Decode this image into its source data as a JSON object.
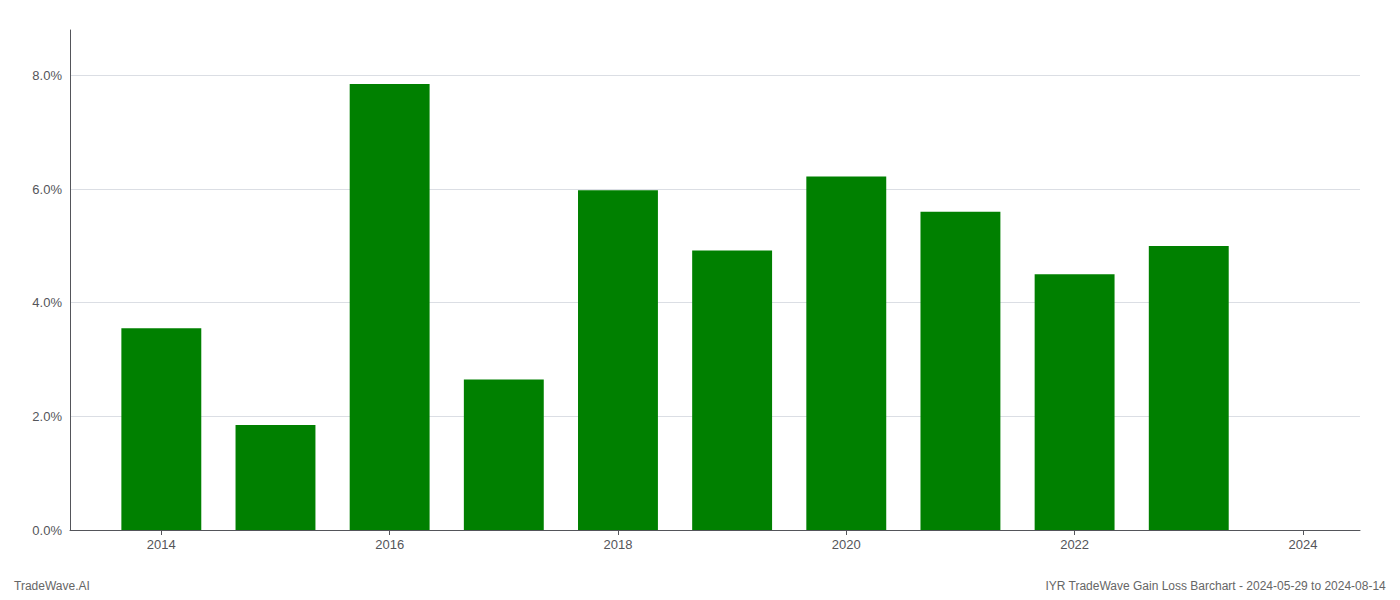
{
  "chart_data": {
    "type": "bar",
    "x": [
      2014,
      2015,
      2016,
      2017,
      2018,
      2019,
      2020,
      2021,
      2022,
      2023
    ],
    "values": [
      0.0355,
      0.0185,
      0.0785,
      0.0265,
      0.0598,
      0.0492,
      0.0622,
      0.056,
      0.045,
      0.05
    ],
    "color": "#008000",
    "xlim": [
      2013.2,
      2024.5
    ],
    "xticks": [
      2014,
      2016,
      2018,
      2020,
      2022,
      2024
    ],
    "ylim": [
      0,
      0.088
    ],
    "yticks": [
      {
        "value": 0.0,
        "label": "0.0%"
      },
      {
        "value": 0.02,
        "label": "2.0%"
      },
      {
        "value": 0.04,
        "label": "4.0%"
      },
      {
        "value": 0.06,
        "label": "6.0%"
      },
      {
        "value": 0.08,
        "label": "8.0%"
      }
    ],
    "grid": true,
    "annotations": [
      "TradeWave.AI",
      "IYR TradeWave Gain Loss Barchart - 2024-05-29 to 2024-08-14"
    ]
  }
}
